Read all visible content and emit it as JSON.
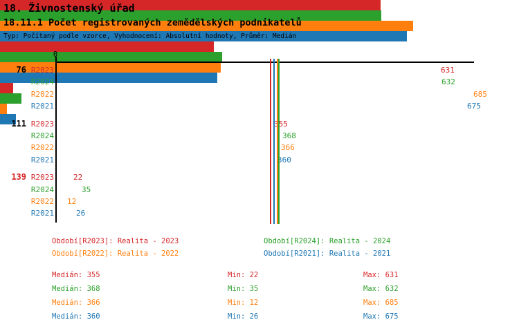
{
  "header": {
    "title": "18. Živnostenský úřad",
    "subtitle": "18.11.1 Počet registrovaných zemědělských podnikatelů",
    "meta": "Typ: Počítaný podle vzorce, Vyhodnocení: Absolutní hodnoty, Průměr: Medián"
  },
  "colors": {
    "r2023": "#d62728",
    "r2024": "#2ca02c",
    "r2022": "#ff7f0e",
    "r2021": "#1f77b4",
    "axis": "#000000",
    "text": "#000000"
  },
  "chart_data": {
    "type": "bar",
    "orientation": "horizontal",
    "title": "18.11.1 Počet registrovaných zemědělských podnikatelů",
    "origin_label": "0",
    "xlim": [
      0,
      690
    ],
    "grid": false,
    "value_labels_shown": true,
    "categories": [
      "76",
      "111",
      "139"
    ],
    "category_label_colors": [
      "#000000",
      "#000000",
      "#d62728"
    ],
    "series": [
      {
        "name": "R2023",
        "color": "#d62728",
        "values": [
          631,
          355,
          22
        ],
        "median": 355,
        "min": 22,
        "max": 631
      },
      {
        "name": "R2024",
        "color": "#2ca02c",
        "values": [
          632,
          368,
          35
        ],
        "median": 368,
        "min": 35,
        "max": 632
      },
      {
        "name": "R2022",
        "color": "#ff7f0e",
        "values": [
          685,
          366,
          12
        ],
        "median": 366,
        "min": 12,
        "max": 685
      },
      {
        "name": "R2021",
        "color": "#1f77b4",
        "values": [
          675,
          360,
          26
        ],
        "median": 360,
        "min": 26,
        "max": 675
      }
    ],
    "median_lines": [
      {
        "series": "R2023",
        "value": 355,
        "color": "#d62728"
      },
      {
        "series": "R2024",
        "value": 368,
        "color": "#2ca02c"
      },
      {
        "series": "R2022",
        "value": 366,
        "color": "#ff7f0e"
      },
      {
        "series": "R2021",
        "value": 360,
        "color": "#1f77b4"
      }
    ]
  },
  "legend": {
    "items": [
      {
        "text": "Období[R2023]: Realita - 2023",
        "color": "#d62728"
      },
      {
        "text": "Období[R2024]: Realita - 2024",
        "color": "#2ca02c"
      },
      {
        "text": "Období[R2022]: Realita - 2022",
        "color": "#ff7f0e"
      },
      {
        "text": "Období[R2021]: Realita - 2021",
        "color": "#1f77b4"
      }
    ]
  },
  "stats": {
    "rows": [
      {
        "median": "Medián: 355",
        "min": "Min: 22",
        "max": "Max: 631",
        "color": "#d62728"
      },
      {
        "median": "Medián: 368",
        "min": "Min: 35",
        "max": "Max: 632",
        "color": "#2ca02c"
      },
      {
        "median": "Medián: 366",
        "min": "Min: 12",
        "max": "Max: 685",
        "color": "#ff7f0e"
      },
      {
        "median": "Medián: 360",
        "min": "Min: 26",
        "max": "Max: 675",
        "color": "#1f77b4"
      }
    ]
  }
}
